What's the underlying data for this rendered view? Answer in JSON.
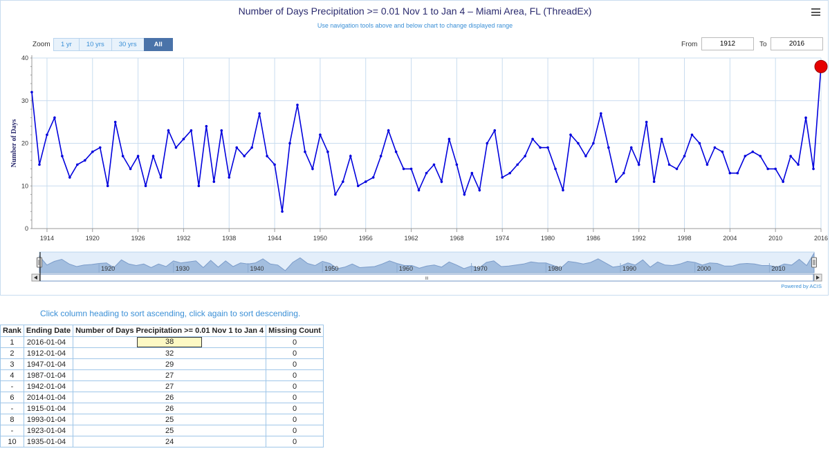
{
  "header": {
    "title": "Number of Days Precipitation >= 0.01 Nov 1 to Jan 4 – Miami Area, FL (ThreadEx)",
    "subtitle": "Use navigation tools above and below chart to change displayed range",
    "menu_icon": "hamburger-menu-icon"
  },
  "zoom": {
    "label": "Zoom",
    "buttons": [
      "1 yr",
      "10 yrs",
      "30 yrs",
      "All"
    ],
    "active": "All"
  },
  "range": {
    "from_label": "From",
    "from_value": "1912",
    "to_label": "To",
    "to_value": "2016"
  },
  "credit": "Powered by ACIS",
  "navigator": {
    "tick_labels": [
      "1920",
      "1930",
      "1940",
      "1950",
      "1960",
      "1970",
      "1980",
      "1990",
      "2000",
      "2010"
    ],
    "scroll_glyph": "III"
  },
  "chart_data": {
    "type": "line",
    "title": "Number of Days Precipitation >= 0.01 Nov 1 to Jan 4 – Miami Area, FL (ThreadEx)",
    "ylabel": "Number of Days",
    "xlabel": "",
    "ylim": [
      0,
      40
    ],
    "xlim": [
      1912,
      2016
    ],
    "y_ticks": [
      0,
      10,
      20,
      30,
      40
    ],
    "x_ticks": [
      1914,
      1920,
      1926,
      1932,
      1938,
      1944,
      1950,
      1956,
      1962,
      1968,
      1974,
      1980,
      1986,
      1992,
      1998,
      2004,
      2010,
      2016
    ],
    "grid": true,
    "color": "#0000dd",
    "highlight_color": "#e60000",
    "highlight_year": 2016,
    "series": [
      {
        "name": "",
        "x": [
          1912,
          1913,
          1914,
          1915,
          1916,
          1917,
          1918,
          1919,
          1920,
          1921,
          1922,
          1923,
          1924,
          1925,
          1926,
          1927,
          1928,
          1929,
          1930,
          1931,
          1932,
          1933,
          1934,
          1935,
          1936,
          1937,
          1938,
          1939,
          1940,
          1941,
          1942,
          1943,
          1944,
          1945,
          1946,
          1947,
          1948,
          1949,
          1950,
          1951,
          1952,
          1953,
          1954,
          1955,
          1956,
          1957,
          1958,
          1959,
          1960,
          1961,
          1962,
          1963,
          1964,
          1965,
          1966,
          1967,
          1968,
          1969,
          1970,
          1971,
          1972,
          1973,
          1974,
          1975,
          1976,
          1977,
          1978,
          1979,
          1980,
          1981,
          1982,
          1983,
          1984,
          1985,
          1986,
          1987,
          1988,
          1989,
          1990,
          1991,
          1992,
          1993,
          1994,
          1995,
          1996,
          1997,
          1998,
          1999,
          2000,
          2001,
          2002,
          2003,
          2004,
          2005,
          2006,
          2007,
          2008,
          2009,
          2010,
          2011,
          2012,
          2013,
          2014,
          2015,
          2016
        ],
        "y": [
          32,
          15,
          22,
          26,
          17,
          12,
          15,
          16,
          18,
          19,
          10,
          25,
          17,
          14,
          17,
          10,
          17,
          12,
          23,
          19,
          21,
          23,
          10,
          24,
          11,
          23,
          12,
          19,
          17,
          19,
          27,
          17,
          15,
          4,
          20,
          29,
          18,
          14,
          22,
          18,
          8,
          11,
          17,
          10,
          11,
          12,
          17,
          23,
          18,
          14,
          14,
          9,
          13,
          15,
          11,
          21,
          15,
          8,
          13,
          9,
          20,
          23,
          12,
          13,
          15,
          17,
          21,
          19,
          19,
          14,
          9,
          22,
          20,
          17,
          20,
          27,
          19,
          11,
          13,
          19,
          15,
          25,
          11,
          21,
          15,
          14,
          17,
          22,
          20,
          15,
          19,
          18,
          13,
          13,
          17,
          18,
          17,
          14,
          14,
          11,
          17,
          15,
          26,
          14,
          38
        ]
      }
    ]
  },
  "table": {
    "sort_hint": "Click column heading to sort ascending, click again to sort descending.",
    "columns": [
      "Rank",
      "Ending Date",
      "Number of Days Precipitation >= 0.01 Nov 1 to Jan 4",
      "Missing Count"
    ],
    "rows": [
      {
        "rank": "1",
        "date": "2016-01-04",
        "value": "38",
        "missing": "0"
      },
      {
        "rank": "2",
        "date": "1912-01-04",
        "value": "32",
        "missing": "0"
      },
      {
        "rank": "3",
        "date": "1947-01-04",
        "value": "29",
        "missing": "0"
      },
      {
        "rank": "4",
        "date": "1987-01-04",
        "value": "27",
        "missing": "0"
      },
      {
        "rank": "-",
        "date": "1942-01-04",
        "value": "27",
        "missing": "0"
      },
      {
        "rank": "6",
        "date": "2014-01-04",
        "value": "26",
        "missing": "0"
      },
      {
        "rank": "-",
        "date": "1915-01-04",
        "value": "26",
        "missing": "0"
      },
      {
        "rank": "8",
        "date": "1993-01-04",
        "value": "25",
        "missing": "0"
      },
      {
        "rank": "-",
        "date": "1923-01-04",
        "value": "25",
        "missing": "0"
      },
      {
        "rank": "10",
        "date": "1935-01-04",
        "value": "24",
        "missing": "0"
      }
    ]
  }
}
